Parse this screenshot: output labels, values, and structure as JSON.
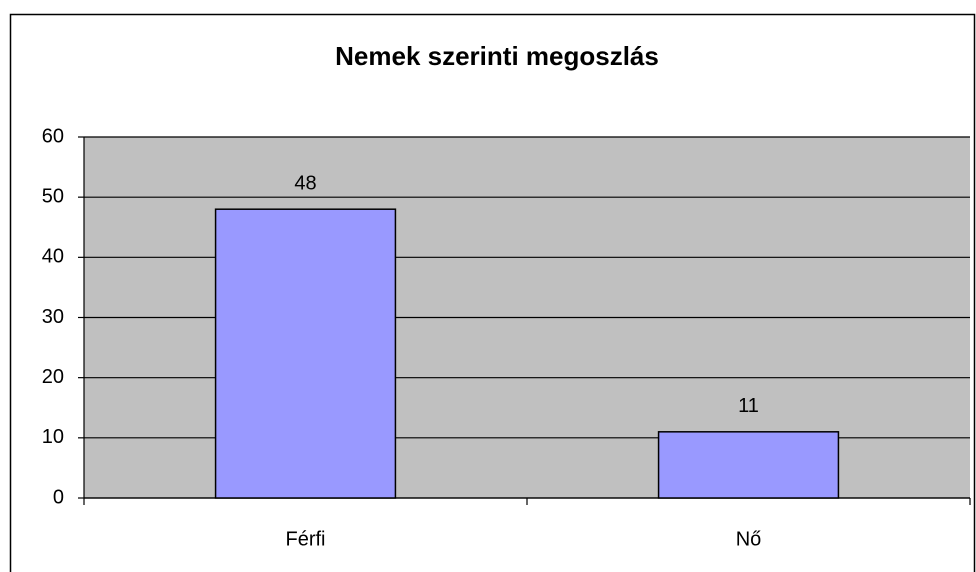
{
  "chart_data": {
    "type": "bar",
    "title": "Nemek szerinti megoszlás",
    "categories": [
      "Férfi",
      "Nő"
    ],
    "values": [
      48,
      11
    ],
    "color": "#9999ff",
    "background": "#c0c0c0",
    "ylim": [
      0,
      60
    ],
    "yticks": [
      0,
      10,
      20,
      30,
      40,
      50,
      60
    ],
    "grid": true
  }
}
